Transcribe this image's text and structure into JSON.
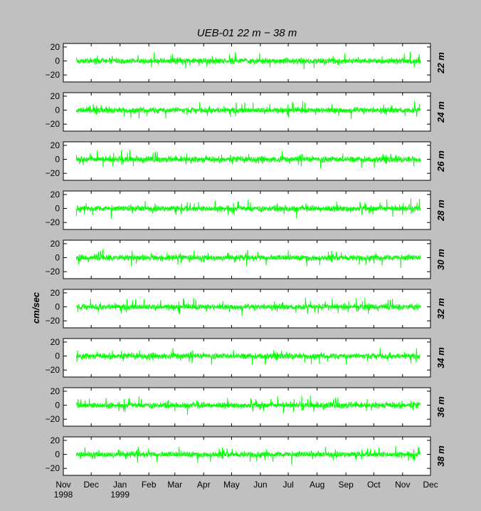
{
  "title": "UEB-01   22 m  −  38 m",
  "ylabel": "cm/sec",
  "chart_data": {
    "type": "line",
    "title": "UEB-01   22 m  −  38 m",
    "ylabel": "cm/sec",
    "xlabel": "",
    "ylim": [
      -30,
      25
    ],
    "yticks": [
      20,
      0,
      -20
    ],
    "ytick_labels": [
      "20",
      "0",
      "−20"
    ],
    "xlim": [
      "1998-11-01",
      "1999-12-01"
    ],
    "xticks": [
      {
        "date": "1998-11-01",
        "label": "Nov",
        "sublabel": "1998"
      },
      {
        "date": "1998-12-01",
        "label": "Dec"
      },
      {
        "date": "1999-01-01",
        "label": "Jan",
        "sublabel": "1999"
      },
      {
        "date": "1999-02-01",
        "label": "Feb"
      },
      {
        "date": "1999-03-01",
        "label": "Mar"
      },
      {
        "date": "1999-04-01",
        "label": "Apr"
      },
      {
        "date": "1999-05-01",
        "label": "May"
      },
      {
        "date": "1999-06-01",
        "label": "Jun"
      },
      {
        "date": "1999-07-01",
        "label": "Jul"
      },
      {
        "date": "1999-08-01",
        "label": "Aug"
      },
      {
        "date": "1999-09-01",
        "label": "Sep"
      },
      {
        "date": "1999-10-01",
        "label": "Oct"
      },
      {
        "date": "1999-11-01",
        "label": "Nov"
      },
      {
        "date": "1999-12-01",
        "label": "Dec"
      }
    ],
    "data_range": [
      "1998-11-15",
      "1999-11-20"
    ],
    "line_color": "#00ff00",
    "grid": false,
    "series": [
      {
        "name": "22 m",
        "amplitude": 5
      },
      {
        "name": "24 m",
        "amplitude": 5
      },
      {
        "name": "26 m",
        "amplitude": 5
      },
      {
        "name": "28 m",
        "amplitude": 5
      },
      {
        "name": "30 m",
        "amplitude": 5
      },
      {
        "name": "32 m",
        "amplitude": 5
      },
      {
        "name": "34 m",
        "amplitude": 5
      },
      {
        "name": "36 m",
        "amplitude": 5
      },
      {
        "name": "38 m",
        "amplitude": 5
      }
    ]
  }
}
